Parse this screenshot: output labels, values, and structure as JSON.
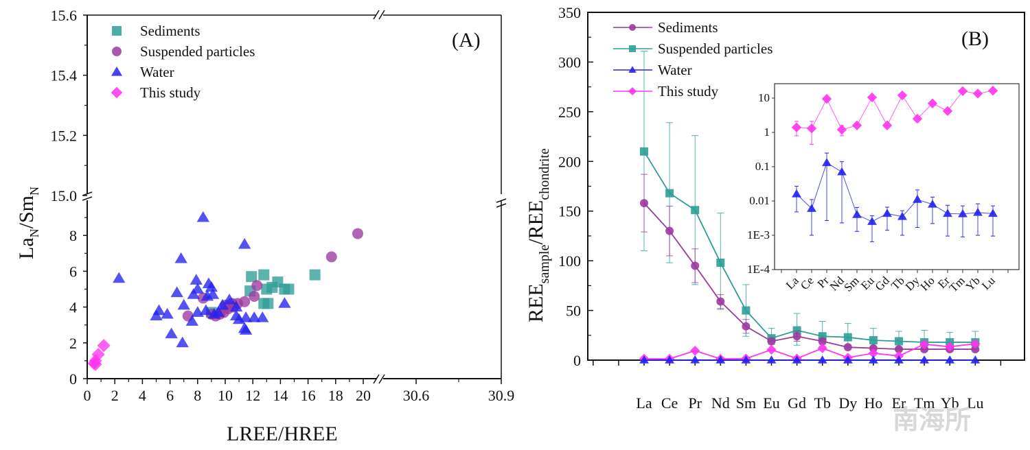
{
  "chart_data": [
    {
      "panel": "(A)",
      "type": "scatter",
      "xlabel": "LREE/HREE",
      "ylabel": "La_N/Sm_N",
      "x_ticks": [
        "0",
        "2",
        "4",
        "6",
        "8",
        "10",
        "12",
        "14",
        "16",
        "18",
        "20",
        "30.6",
        "30.9"
      ],
      "y_ticks_lower": [
        "0",
        "2",
        "4",
        "6",
        "8"
      ],
      "y_ticks_upper": [
        "15.0",
        "15.2",
        "15.4",
        "15.6"
      ],
      "x_range": [
        0,
        30.9
      ],
      "x_break": [
        21,
        30.6
      ],
      "y_range": [
        0,
        15.6
      ],
      "y_break": [
        9.6,
        15.0
      ],
      "grid": false,
      "legend_position": "top-left",
      "series": [
        {
          "name": "Sediments",
          "marker": "square",
          "color": "#2e9e96",
          "points": [
            [
              11.9,
              5.7
            ],
            [
              12.8,
              5.8
            ],
            [
              13.8,
              5.4
            ],
            [
              13.4,
              5.1
            ],
            [
              13.0,
              5.0
            ],
            [
              11.8,
              4.9
            ],
            [
              14.3,
              5.0
            ],
            [
              14.6,
              5.0
            ],
            [
              12.8,
              4.2
            ],
            [
              13.1,
              4.2
            ],
            [
              16.5,
              5.8
            ],
            [
              9.0,
              3.7
            ]
          ]
        },
        {
          "name": "Suspended particles",
          "marker": "circle",
          "color": "#9b3aa0",
          "points": [
            [
              19.6,
              8.1
            ],
            [
              17.7,
              6.8
            ],
            [
              12.3,
              5.2
            ],
            [
              12.1,
              4.6
            ],
            [
              11.4,
              4.3
            ],
            [
              10.9,
              4.2
            ],
            [
              10.6,
              4.0
            ],
            [
              10.2,
              3.9
            ],
            [
              9.9,
              3.7
            ],
            [
              9.6,
              3.6
            ],
            [
              9.3,
              3.5
            ],
            [
              9.0,
              3.6
            ],
            [
              8.4,
              4.5
            ],
            [
              7.3,
              3.5
            ],
            [
              10.0,
              4.1
            ],
            [
              10.5,
              4.2
            ]
          ]
        },
        {
          "name": "Water",
          "marker": "triangle",
          "color": "#2222ee",
          "points": [
            [
              2.3,
              5.6
            ],
            [
              8.4,
              9.0
            ],
            [
              11.4,
              7.5
            ],
            [
              6.8,
              6.7
            ],
            [
              7.9,
              5.5
            ],
            [
              8.8,
              5.3
            ],
            [
              9.0,
              5.1
            ],
            [
              8.0,
              5.0
            ],
            [
              6.5,
              4.8
            ],
            [
              7.7,
              4.7
            ],
            [
              9.1,
              4.7
            ],
            [
              8.7,
              4.6
            ],
            [
              10.3,
              4.4
            ],
            [
              7.0,
              4.1
            ],
            [
              9.8,
              4.1
            ],
            [
              8.6,
              3.8
            ],
            [
              5.2,
              3.8
            ],
            [
              5.0,
              3.5
            ],
            [
              5.8,
              3.6
            ],
            [
              8.0,
              3.7
            ],
            [
              9.5,
              3.7
            ],
            [
              10.8,
              3.5
            ],
            [
              11.0,
              3.3
            ],
            [
              11.5,
              3.4
            ],
            [
              12.1,
              3.4
            ],
            [
              12.7,
              3.4
            ],
            [
              7.6,
              3.2
            ],
            [
              6.1,
              2.5
            ],
            [
              6.9,
              2.0
            ],
            [
              11.4,
              2.8
            ],
            [
              11.5,
              2.7
            ],
            [
              14.3,
              4.2
            ],
            [
              10.8,
              4.0
            ],
            [
              9.2,
              3.6
            ]
          ]
        },
        {
          "name": "This study",
          "marker": "diamond",
          "color": "#ff33ee",
          "points": [
            [
              1.2,
              1.85
            ],
            [
              0.8,
              1.35
            ],
            [
              0.6,
              1.0
            ],
            [
              0.5,
              0.85
            ],
            [
              0.6,
              0.8
            ]
          ]
        }
      ]
    },
    {
      "panel": "(B)",
      "type": "line",
      "ylabel": "REE_sample/REE_chondrite",
      "categories": [
        "La",
        "Ce",
        "Pr",
        "Nd",
        "Sm",
        "Eu",
        "Gd",
        "Tb",
        "Dy",
        "Ho",
        "Er",
        "Tm",
        "Yb",
        "Lu"
      ],
      "y_ticks": [
        "0",
        "50",
        "100",
        "150",
        "200",
        "250",
        "300",
        "350"
      ],
      "ylim": [
        0,
        350
      ],
      "grid": false,
      "legend_position": "top-left",
      "series": [
        {
          "name": "Sediments",
          "marker": "circle",
          "color": "#9b3aa0",
          "values": [
            158,
            130,
            95,
            59,
            34,
            19,
            24,
            19,
            13,
            12,
            11,
            11,
            11,
            11
          ],
          "err_low": [
            129,
            105,
            78,
            52,
            27,
            16,
            19,
            16,
            11,
            10,
            9,
            9,
            9,
            9
          ],
          "err_high": [
            187,
            155,
            112,
            66,
            41,
            22,
            29,
            22,
            15,
            14,
            13,
            13,
            13,
            13
          ]
        },
        {
          "name": "Suspended particles",
          "marker": "square",
          "color": "#2e9e96",
          "values": [
            210,
            168,
            151,
            98,
            50,
            22,
            30,
            24,
            23,
            20,
            19,
            18,
            18,
            18
          ],
          "err_low": [
            110,
            98,
            76,
            51,
            24,
            16,
            15,
            14,
            15,
            12,
            12,
            11,
            11,
            11
          ],
          "err_high": [
            311,
            239,
            226,
            148,
            76,
            32,
            47,
            39,
            37,
            32,
            29,
            30,
            28,
            29
          ],
          "err_caps": true
        },
        {
          "name": "Water",
          "marker": "triangle",
          "color": "#2222ee",
          "values": [
            0.016,
            0.006,
            0.13,
            0.07,
            0.004,
            0.0025,
            0.0043,
            0.0035,
            0.011,
            0.008,
            0.0043,
            0.0042,
            0.0046,
            0.0043
          ]
        },
        {
          "name": "This study",
          "marker": "diamond",
          "color": "#ff33ee",
          "values": [
            1.4,
            1.3,
            9.5,
            1.2,
            1.6,
            10.5,
            1.6,
            12,
            2.5,
            7,
            4.2,
            16,
            13.5,
            16.5
          ]
        }
      ],
      "inset": {
        "type": "line",
        "yscale": "log",
        "ylim": [
          0.0001,
          20
        ],
        "y_ticks": [
          "1E-4",
          "1E-3",
          "0.01",
          "0.1",
          "1",
          "10"
        ],
        "categories": [
          "La",
          "Ce",
          "Pr",
          "Nd",
          "Sm",
          "Eu",
          "Gd",
          "Tb",
          "Dy",
          "Ho",
          "Er",
          "Tm",
          "Yb",
          "Lu"
        ],
        "series": [
          {
            "name": "This study",
            "marker": "diamond",
            "color": "#ff33ee",
            "values": [
              1.4,
              1.3,
              9.5,
              1.2,
              1.6,
              10.5,
              1.6,
              12,
              2.5,
              7,
              4.2,
              16,
              13.5,
              16.5
            ],
            "err_low": [
              0.8,
              0.45,
              null,
              0.8,
              null,
              null,
              null,
              null,
              null,
              null,
              null,
              null,
              null,
              null
            ],
            "err_high": [
              2.1,
              2.1,
              null,
              1.6,
              null,
              null,
              null,
              null,
              null,
              null,
              null,
              null,
              null,
              null
            ]
          },
          {
            "name": "Water",
            "marker": "triangle",
            "color": "#2222ee",
            "values": [
              0.016,
              0.006,
              0.13,
              0.07,
              0.004,
              0.0025,
              0.0043,
              0.0035,
              0.011,
              0.008,
              0.0043,
              0.0042,
              0.0046,
              0.0043
            ],
            "err_low": [
              0.0048,
              0.001,
              0.0027,
              0.0023,
              0.0013,
              0.00065,
              0.0014,
              0.001,
              0.0017,
              0.0022,
              0.00095,
              0.0009,
              0.001,
              0.00095
            ],
            "err_high": [
              0.027,
              0.011,
              0.25,
              0.14,
              0.0065,
              0.0037,
              0.0066,
              0.0052,
              0.021,
              0.013,
              0.0075,
              0.0072,
              0.0083,
              0.0072
            ]
          }
        ]
      }
    }
  ],
  "watermark": "南海所"
}
